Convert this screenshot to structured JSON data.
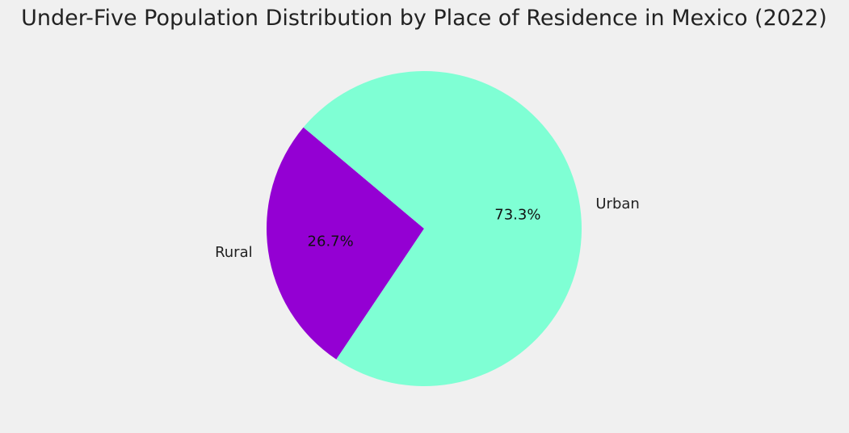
{
  "chart_data": {
    "type": "pie",
    "title": "Under-Five Population Distribution by Place of Residence in Mexico (2022)",
    "slices": [
      {
        "label": "Rural",
        "value": 26.7,
        "pct_label": "26.7%",
        "color": "#9400D3"
      },
      {
        "label": "Urban",
        "value": 73.3,
        "pct_label": "73.3%",
        "color": "#7FFFD4"
      }
    ],
    "start_angle_deg": 140,
    "direction": "counterclockwise",
    "legend": "none",
    "background": "#f0f0f0"
  }
}
